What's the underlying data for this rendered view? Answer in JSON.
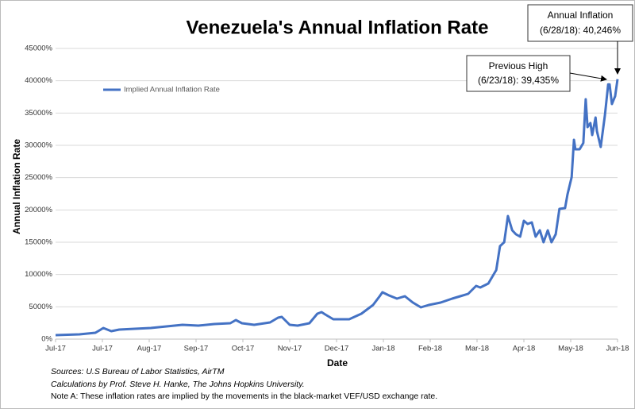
{
  "chart_data": {
    "type": "line",
    "title": "Venezuela's Annual Inflation Rate",
    "xlabel": "Date",
    "ylabel": "Annual Inflation Rate",
    "xlim": [
      0,
      12
    ],
    "xticks": [
      {
        "value": 0,
        "label": "Jul-17"
      },
      {
        "value": 1,
        "label": "Jul-17"
      },
      {
        "value": 2,
        "label": "Aug-17"
      },
      {
        "value": 3,
        "label": "Sep-17"
      },
      {
        "value": 4,
        "label": "Oct-17"
      },
      {
        "value": 5,
        "label": "Nov-17"
      },
      {
        "value": 6,
        "label": "Dec-17"
      },
      {
        "value": 7,
        "label": "Jan-18"
      },
      {
        "value": 8,
        "label": "Feb-18"
      },
      {
        "value": 9,
        "label": "Mar-18"
      },
      {
        "value": 10,
        "label": "Apr-18"
      },
      {
        "value": 11,
        "label": "May-18"
      },
      {
        "value": 12,
        "label": "Jun-18"
      }
    ],
    "ylim": [
      0,
      45000
    ],
    "yticks": [
      {
        "value": 0,
        "label": "0%"
      },
      {
        "value": 5000,
        "label": "5000%"
      },
      {
        "value": 10000,
        "label": "10000%"
      },
      {
        "value": 15000,
        "label": "15000%"
      },
      {
        "value": 20000,
        "label": "20000%"
      },
      {
        "value": 25000,
        "label": "25000%"
      },
      {
        "value": 30000,
        "label": "30000%"
      },
      {
        "value": 35000,
        "label": "35000%"
      },
      {
        "value": 40000,
        "label": "40000%"
      },
      {
        "value": 45000,
        "label": "45000%"
      }
    ],
    "grid": true,
    "legend": "top-left",
    "series": [
      {
        "name": "Implied Annual Inflation Rate",
        "color": "#4472c4",
        "x": [
          0,
          0.51,
          0.85,
          1.02,
          1.19,
          1.36,
          1.69,
          2.03,
          2.37,
          2.71,
          3.05,
          3.39,
          3.73,
          3.85,
          3.98,
          4.24,
          4.58,
          4.75,
          4.83,
          5.0,
          5.17,
          5.42,
          5.59,
          5.68,
          5.76,
          5.93,
          6.27,
          6.53,
          6.78,
          6.92,
          6.98,
          7.12,
          7.29,
          7.46,
          7.63,
          7.8,
          7.97,
          8.22,
          8.47,
          8.64,
          8.81,
          8.98,
          9.07,
          9.24,
          9.41,
          9.49,
          9.58,
          9.66,
          9.75,
          9.83,
          9.92,
          10.0,
          10.08,
          10.17,
          10.25,
          10.34,
          10.42,
          10.51,
          10.59,
          10.68,
          10.76,
          10.88,
          10.93,
          11.02,
          11.07,
          11.1,
          11.19,
          11.27,
          11.32,
          11.36,
          11.42,
          11.46,
          11.53,
          11.56,
          11.64,
          11.73,
          11.8,
          11.83,
          11.88,
          11.95,
          12
        ],
        "values": [
          615,
          738,
          984,
          1721,
          1230,
          1475,
          1598,
          1721,
          1967,
          2213,
          2090,
          2336,
          2459,
          2951,
          2459,
          2213,
          2582,
          3320,
          3443,
          2213,
          2090,
          2459,
          3934,
          4180,
          3811,
          3074,
          3074,
          3934,
          5287,
          6639,
          7254,
          6762,
          6270,
          6639,
          5656,
          4918,
          5287,
          5656,
          6270,
          6639,
          7008,
          8238,
          7992,
          8607,
          10697,
          14385,
          15000,
          19057,
          16844,
          16229,
          15861,
          18320,
          17828,
          18074,
          15861,
          16844,
          15000,
          16844,
          15000,
          16229,
          20164,
          20287,
          22377,
          25082,
          30860,
          29385,
          29385,
          30369,
          37131,
          32828,
          33443,
          31598,
          34303,
          32213,
          29754,
          34672,
          39435,
          39435,
          36393,
          37623,
          40246
        ]
      }
    ],
    "annotations": [
      {
        "lines": [
          "Annual Inflation",
          "(6/28/18): 40,246%"
        ]
      },
      {
        "lines": [
          "Previous High",
          "(6/23/18): 39,435%"
        ]
      }
    ],
    "notes": [
      "Sources: U.S Bureau of Labor Statistics, AirTM",
      "Calculations by Prof. Steve H. Hanke, The Johns Hopkins University.",
      "Note A: These inflation rates are implied by the movements in the black-market VEF/USD exchange rate."
    ]
  }
}
